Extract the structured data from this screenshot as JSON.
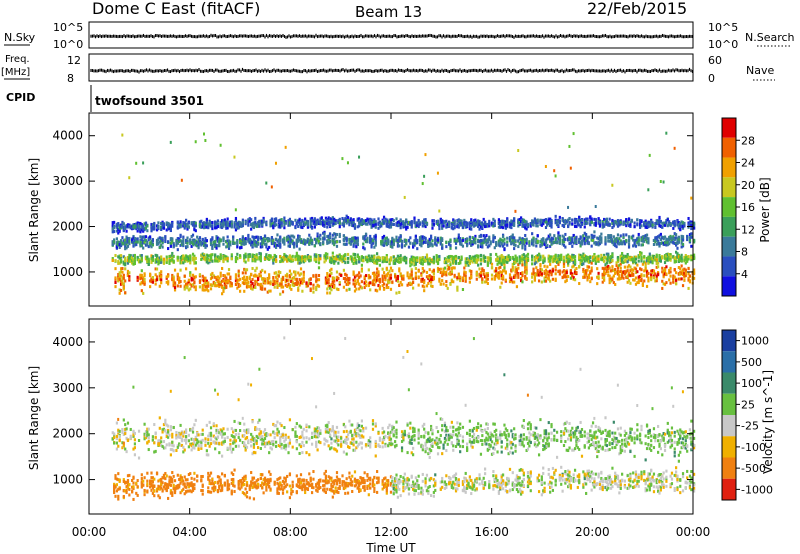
{
  "header": {
    "station": "Dome C East (fitACF)",
    "beam": "Beam 13",
    "date": "22/Feb/2015"
  },
  "strip_labels": {
    "nsky": "N.Sky",
    "nsky_top": "10^5",
    "nsky_bottom": "10^0",
    "nsearch": "N.Search",
    "nsearch_top": "10^5",
    "nsearch_bottom": "10^0",
    "freq": "Freq.",
    "freq_unit": "[MHz]",
    "freq_top": "12",
    "freq_bottom": "8",
    "nave": "Nave",
    "nave_top": "60",
    "nave_bottom": "0",
    "cpid": "CPID",
    "cpid_value": "twofsound 3501"
  },
  "chart_data": [
    {
      "type": "heatmap",
      "panel": "power",
      "ylabel": "Slant Range [km]",
      "ylim": [
        250,
        4500
      ],
      "yticks": [
        "1000",
        "2000",
        "3000",
        "4000"
      ],
      "colorbar_label": "Power [dB]",
      "colorbar_ticks": [
        "4",
        "8",
        "12",
        "16",
        "20",
        "24",
        "28"
      ],
      "colorbar_range": [
        0,
        32
      ],
      "colors": [
        "#1010e0",
        "#2a4fbf",
        "#3a7a9a",
        "#3a9f5a",
        "#60c030",
        "#c8c820",
        "#f0a000",
        "#f06000",
        "#e00000"
      ],
      "bands": [
        {
          "center": [
            850,
            800,
            800,
            900,
            1000,
            900
          ],
          "width": 350,
          "level": 26
        },
        {
          "center": [
            1250,
            1300,
            1300,
            1250,
            1300,
            1300
          ],
          "width": 150,
          "level": 18
        },
        {
          "center": [
            1650,
            1650,
            1700,
            1650,
            1700,
            1700
          ],
          "width": 200,
          "level": 10
        },
        {
          "center": [
            1950,
            2050,
            2100,
            2050,
            2100,
            2050
          ],
          "width": 150,
          "level": 8
        }
      ]
    },
    {
      "type": "heatmap",
      "panel": "velocity",
      "ylabel": "Slant Range [km]",
      "ylim": [
        250,
        4500
      ],
      "yticks": [
        "1000",
        "2000",
        "3000",
        "4000"
      ],
      "colorbar_label": "Velocity [m s^-1]",
      "colorbar_ticks": [
        "1000",
        "500",
        "100",
        "25",
        "-25",
        "-100",
        "-500",
        "-1000"
      ],
      "colors": [
        "#1a3fa0",
        "#2a6fa8",
        "#3a8a6a",
        "#68c040",
        "#c8c8c8",
        "#f0b000",
        "#f08010",
        "#e02010"
      ],
      "bands": [
        {
          "center": [
            850,
            900,
            900,
            900,
            1000,
            950
          ],
          "width": 350,
          "level": -150
        },
        {
          "center": [
            1900,
            1900,
            1950,
            1900,
            1900,
            1850
          ],
          "width": 500,
          "level": 0
        }
      ]
    }
  ],
  "time_axis": {
    "label": "Time UT",
    "ticks": [
      "00:00",
      "04:00",
      "08:00",
      "12:00",
      "16:00",
      "20:00",
      "00:00"
    ],
    "range_hours": [
      0,
      24
    ]
  }
}
